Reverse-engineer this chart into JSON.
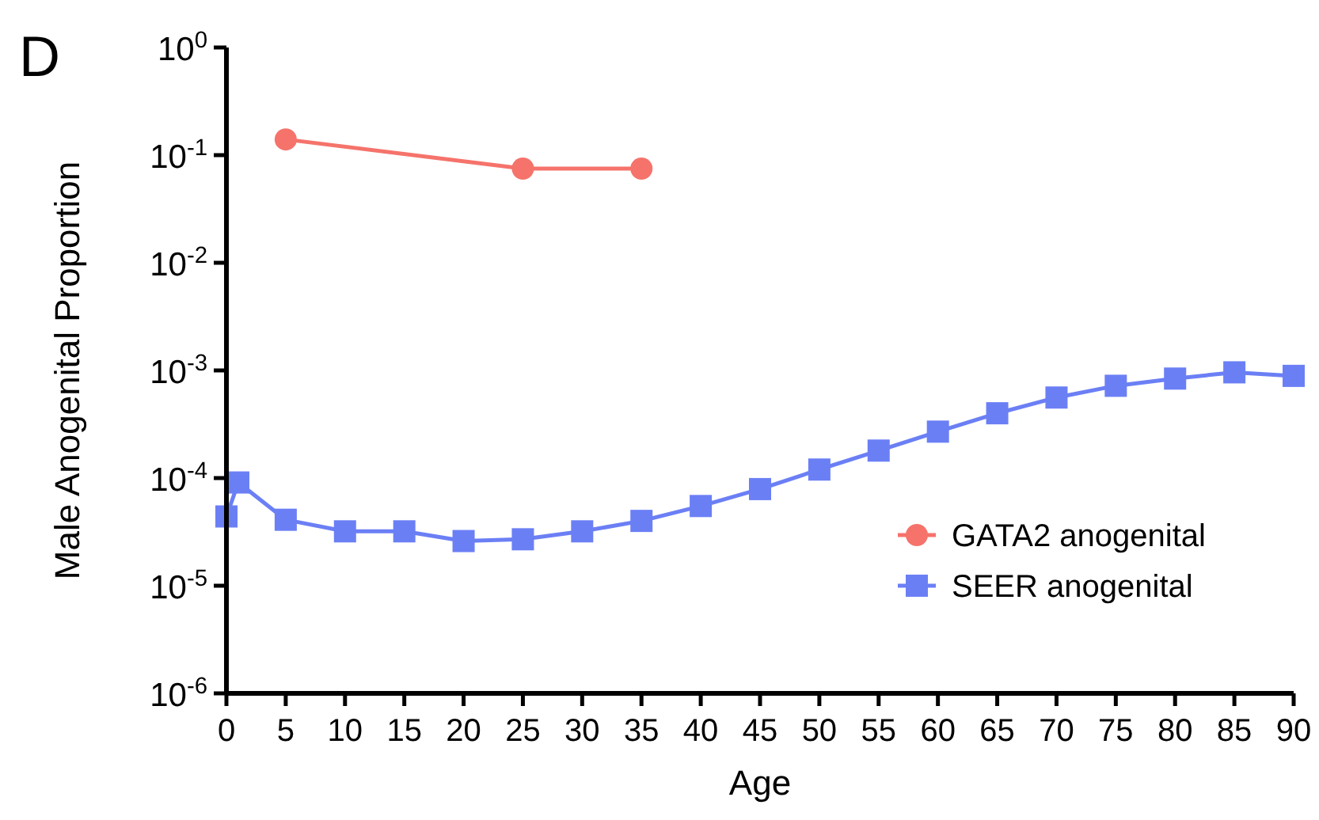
{
  "chart_data": {
    "type": "line",
    "title": "D",
    "xlabel": "Age",
    "ylabel": "Male Anogenital Proportion",
    "log": "y",
    "xlim": [
      0,
      90
    ],
    "xticks": [
      0,
      5,
      10,
      15,
      20,
      25,
      30,
      35,
      40,
      45,
      50,
      55,
      60,
      65,
      70,
      75,
      80,
      85,
      90
    ],
    "ylim": [
      1e-06,
      1
    ],
    "yticks": [
      {
        "value": 1e-06,
        "label": "10$^{-6}$"
      },
      {
        "value": 1e-05,
        "label": "10$^{-5}$"
      },
      {
        "value": 0.0001,
        "label": "10$^{-4}$"
      },
      {
        "value": 0.001,
        "label": "10$^{-3}$"
      },
      {
        "value": 0.01,
        "label": "10$^{-2}$"
      },
      {
        "value": 0.1,
        "label": "10$^{-1}$"
      },
      {
        "value": 1,
        "label": "10$^{0}$"
      }
    ],
    "grid": false,
    "legend": "right",
    "series": [
      {
        "name": "GATA2 anogenital",
        "color": "#f5736b",
        "marker": "circle",
        "x": [
          5,
          25,
          35
        ],
        "values": [
          0.14,
          0.075,
          0.075
        ]
      },
      {
        "name": "SEER anogenital",
        "color": "#6b7ff5",
        "marker": "square",
        "x": [
          0,
          1,
          5,
          10,
          15,
          20,
          25,
          30,
          35,
          40,
          45,
          50,
          55,
          60,
          65,
          70,
          75,
          80,
          85,
          90
        ],
        "values": [
          4.4e-05,
          9.1e-05,
          4.1e-05,
          3.2e-05,
          3.2e-05,
          2.6e-05,
          2.7e-05,
          3.2e-05,
          4e-05,
          5.5e-05,
          7.9e-05,
          0.00012,
          0.00018,
          0.00027,
          0.0004,
          0.00056,
          0.00072,
          0.00084,
          0.00096,
          0.00089
        ]
      }
    ]
  }
}
